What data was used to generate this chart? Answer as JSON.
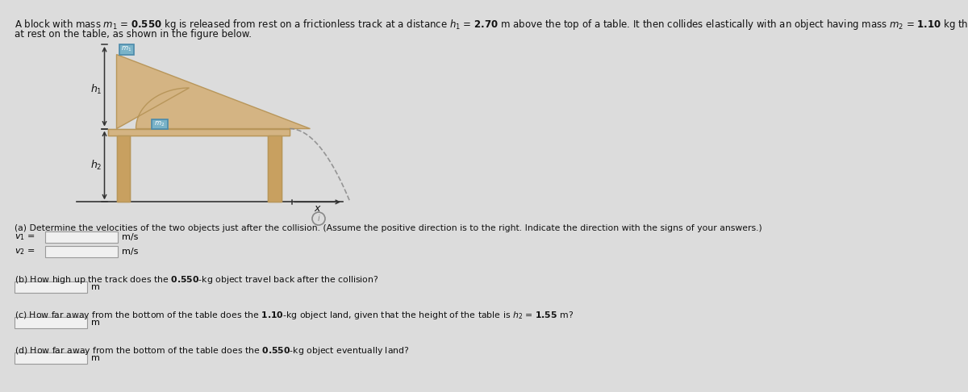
{
  "bg_color": "#dcdcdc",
  "fig_width": 12.0,
  "fig_height": 4.86,
  "table_fill": "#d4b483",
  "table_edge": "#b8965a",
  "leg_fill": "#c8a060",
  "leg_edge": "#b8965a",
  "ramp_fill": "#d4b483",
  "ramp_edge": "#b8965a",
  "block_fill": "#7ab3c8",
  "block_edge": "#4a8aaa",
  "traj_color": "#888888",
  "arrow_color": "#333333",
  "text_color": "#111111",
  "highlight_orange": "#cc6600",
  "highlight_blue": "#1a7ab5",
  "box_fill": "#f0f0f0",
  "box_edge": "#999999",
  "header_line1": "A block with mass ",
  "header_line2": "at rest on the table, as shown in the figure below.",
  "m1_val": "0.550",
  "m2_val": "1.10",
  "h1_val": "2.70",
  "h2_val": "1.55"
}
